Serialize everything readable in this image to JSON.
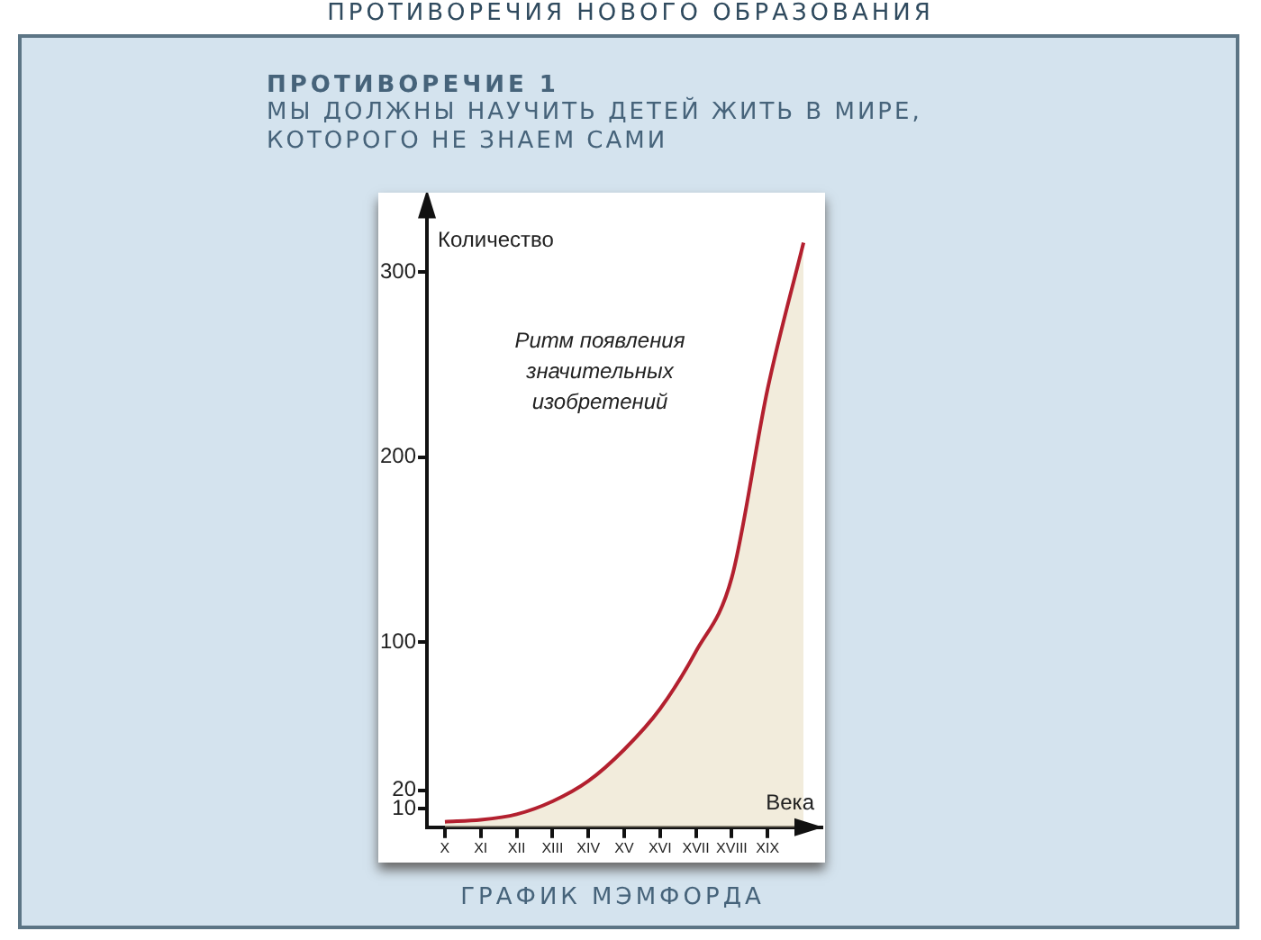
{
  "chart_data": {
    "type": "area",
    "title": "ПРОТИВОРЕЧИЯ НОВОГО ОБРАЗОВАНИЯ",
    "subtitle": "ПРОТИВОРЕЧИЕ 1",
    "annotations": [
      "МЫ ДОЛЖНЫ НАУЧИТЬ ДЕТЕЙ ЖИТЬ В МИРЕ, КОТОРОГО НЕ ЗНАЕМ САМИ",
      "Ритм появления значительных изобретений",
      "ГРАФИК МЭМФОРДА"
    ],
    "xlabel": "Века",
    "ylabel": "Количество",
    "categories": [
      "X",
      "XI",
      "XII",
      "XIII",
      "XIV",
      "XV",
      "XVI",
      "XVII",
      "XVIII",
      "XIX",
      null
    ],
    "series": [
      {
        "color": "#b3202f",
        "values": [
          3,
          4,
          7,
          14,
          25,
          42,
          64,
          95,
          135,
          237,
          316
        ]
      }
    ],
    "ylim": [
      0,
      335
    ],
    "yticks": [
      10,
      20,
      100,
      200,
      300
    ],
    "grid": false,
    "legend": false,
    "marker": "none",
    "line_style": "solid"
  }
}
